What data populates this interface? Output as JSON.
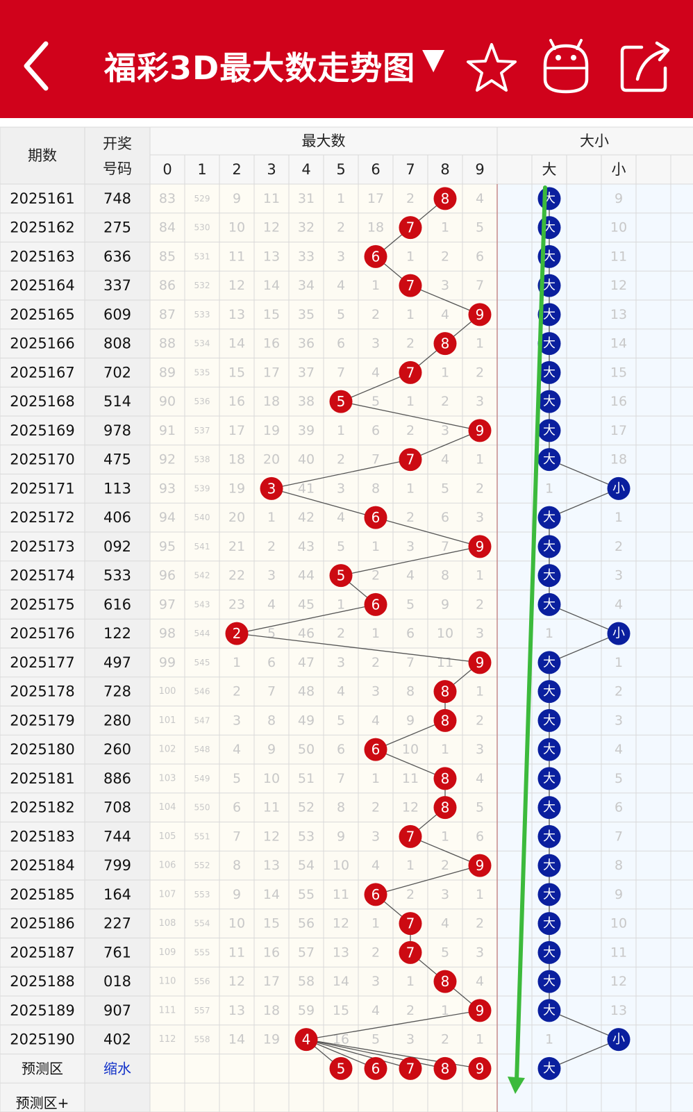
{
  "header": {
    "title": "福彩3D最大数走势图",
    "dropdown_glyph": "▼",
    "icons": [
      "back-arrow-icon",
      "star-icon",
      "robot-icon",
      "share-icon"
    ]
  },
  "table": {
    "col_period": "期数",
    "col_draw_line1": "开奖",
    "col_draw_line2": "号码",
    "group_max": "最大数",
    "group_size": "大小",
    "digits": [
      "0",
      "1",
      "2",
      "3",
      "4",
      "5",
      "6",
      "7",
      "8",
      "9"
    ],
    "size_labels": [
      "大",
      "小"
    ],
    "rows": [
      {
        "period": "2025161",
        "draw": "748",
        "max": 8,
        "size": "大",
        "cells": [
          "83",
          "529",
          "9",
          "11",
          "31",
          "1",
          "17",
          "2",
          "8",
          "4"
        ],
        "small_miss": "9"
      },
      {
        "period": "2025162",
        "draw": "275",
        "max": 7,
        "size": "大",
        "cells": [
          "84",
          "530",
          "10",
          "12",
          "32",
          "2",
          "18",
          "7",
          "1",
          "5"
        ],
        "small_miss": "10"
      },
      {
        "period": "2025163",
        "draw": "636",
        "max": 6,
        "size": "大",
        "cells": [
          "85",
          "531",
          "11",
          "13",
          "33",
          "3",
          "6",
          "1",
          "2",
          "6"
        ],
        "small_miss": "11"
      },
      {
        "period": "2025164",
        "draw": "337",
        "max": 7,
        "size": "大",
        "cells": [
          "86",
          "532",
          "12",
          "14",
          "34",
          "4",
          "1",
          "7",
          "3",
          "7"
        ],
        "small_miss": "12"
      },
      {
        "period": "2025165",
        "draw": "609",
        "max": 9,
        "size": "大",
        "cells": [
          "87",
          "533",
          "13",
          "15",
          "35",
          "5",
          "2",
          "1",
          "4",
          "9"
        ],
        "small_miss": "13"
      },
      {
        "period": "2025166",
        "draw": "808",
        "max": 8,
        "size": "大",
        "cells": [
          "88",
          "534",
          "14",
          "16",
          "36",
          "6",
          "3",
          "2",
          "8",
          "1"
        ],
        "small_miss": "14"
      },
      {
        "period": "2025167",
        "draw": "702",
        "max": 7,
        "size": "大",
        "cells": [
          "89",
          "535",
          "15",
          "17",
          "37",
          "7",
          "4",
          "7",
          "1",
          "2"
        ],
        "small_miss": "15"
      },
      {
        "period": "2025168",
        "draw": "514",
        "max": 5,
        "size": "大",
        "cells": [
          "90",
          "536",
          "16",
          "18",
          "38",
          "5",
          "5",
          "1",
          "2",
          "3"
        ],
        "small_miss": "16"
      },
      {
        "period": "2025169",
        "draw": "978",
        "max": 9,
        "size": "大",
        "cells": [
          "91",
          "537",
          "17",
          "19",
          "39",
          "1",
          "6",
          "2",
          "3",
          "9"
        ],
        "small_miss": "17"
      },
      {
        "period": "2025170",
        "draw": "475",
        "max": 7,
        "size": "大",
        "cells": [
          "92",
          "538",
          "18",
          "20",
          "40",
          "2",
          "7",
          "7",
          "4",
          "1"
        ],
        "small_miss": "18"
      },
      {
        "period": "2025171",
        "draw": "113",
        "max": 3,
        "size": "小",
        "cells": [
          "93",
          "539",
          "19",
          "3",
          "41",
          "3",
          "8",
          "1",
          "5",
          "2"
        ],
        "big_miss": "1"
      },
      {
        "period": "2025172",
        "draw": "406",
        "max": 6,
        "size": "大",
        "cells": [
          "94",
          "540",
          "20",
          "1",
          "42",
          "4",
          "6",
          "2",
          "6",
          "3"
        ],
        "small_miss": "1"
      },
      {
        "period": "2025173",
        "draw": "092",
        "max": 9,
        "size": "大",
        "cells": [
          "95",
          "541",
          "21",
          "2",
          "43",
          "5",
          "1",
          "3",
          "7",
          "9"
        ],
        "small_miss": "2"
      },
      {
        "period": "2025174",
        "draw": "533",
        "max": 5,
        "size": "大",
        "cells": [
          "96",
          "542",
          "22",
          "3",
          "44",
          "5",
          "2",
          "4",
          "8",
          "1"
        ],
        "small_miss": "3"
      },
      {
        "period": "2025175",
        "draw": "616",
        "max": 6,
        "size": "大",
        "cells": [
          "97",
          "543",
          "23",
          "4",
          "45",
          "1",
          "6",
          "5",
          "9",
          "2"
        ],
        "small_miss": "4"
      },
      {
        "period": "2025176",
        "draw": "122",
        "max": 2,
        "size": "小",
        "cells": [
          "98",
          "544",
          "2",
          "5",
          "46",
          "2",
          "1",
          "6",
          "10",
          "3"
        ],
        "big_miss": "1"
      },
      {
        "period": "2025177",
        "draw": "497",
        "max": 9,
        "size": "大",
        "cells": [
          "99",
          "545",
          "1",
          "6",
          "47",
          "3",
          "2",
          "7",
          "11",
          "9"
        ],
        "small_miss": "1"
      },
      {
        "period": "2025178",
        "draw": "728",
        "max": 8,
        "size": "大",
        "cells": [
          "100",
          "546",
          "2",
          "7",
          "48",
          "4",
          "3",
          "8",
          "8",
          "1"
        ],
        "small_miss": "2"
      },
      {
        "period": "2025179",
        "draw": "280",
        "max": 8,
        "size": "大",
        "cells": [
          "101",
          "547",
          "3",
          "8",
          "49",
          "5",
          "4",
          "9",
          "8",
          "2"
        ],
        "small_miss": "3"
      },
      {
        "period": "2025180",
        "draw": "260",
        "max": 6,
        "size": "大",
        "cells": [
          "102",
          "548",
          "4",
          "9",
          "50",
          "6",
          "6",
          "10",
          "1",
          "3"
        ],
        "small_miss": "4"
      },
      {
        "period": "2025181",
        "draw": "886",
        "max": 8,
        "size": "大",
        "cells": [
          "103",
          "549",
          "5",
          "10",
          "51",
          "7",
          "1",
          "11",
          "8",
          "4"
        ],
        "small_miss": "5"
      },
      {
        "period": "2025182",
        "draw": "708",
        "max": 8,
        "size": "大",
        "cells": [
          "104",
          "550",
          "6",
          "11",
          "52",
          "8",
          "2",
          "12",
          "8",
          "5"
        ],
        "small_miss": "6"
      },
      {
        "period": "2025183",
        "draw": "744",
        "max": 7,
        "size": "大",
        "cells": [
          "105",
          "551",
          "7",
          "12",
          "53",
          "9",
          "3",
          "7",
          "1",
          "6"
        ],
        "small_miss": "7"
      },
      {
        "period": "2025184",
        "draw": "799",
        "max": 9,
        "size": "大",
        "cells": [
          "106",
          "552",
          "8",
          "13",
          "54",
          "10",
          "4",
          "1",
          "2",
          "9"
        ],
        "small_miss": "8"
      },
      {
        "period": "2025185",
        "draw": "164",
        "max": 6,
        "size": "大",
        "cells": [
          "107",
          "553",
          "9",
          "14",
          "55",
          "11",
          "6",
          "2",
          "3",
          "1"
        ],
        "small_miss": "9"
      },
      {
        "period": "2025186",
        "draw": "227",
        "max": 7,
        "size": "大",
        "cells": [
          "108",
          "554",
          "10",
          "15",
          "56",
          "12",
          "1",
          "7",
          "4",
          "2"
        ],
        "small_miss": "10"
      },
      {
        "period": "2025187",
        "draw": "761",
        "max": 7,
        "size": "大",
        "cells": [
          "109",
          "555",
          "11",
          "16",
          "57",
          "13",
          "2",
          "7",
          "5",
          "3"
        ],
        "small_miss": "11"
      },
      {
        "period": "2025188",
        "draw": "018",
        "max": 8,
        "size": "大",
        "cells": [
          "110",
          "556",
          "12",
          "17",
          "58",
          "14",
          "3",
          "1",
          "8",
          "4"
        ],
        "small_miss": "12"
      },
      {
        "period": "2025189",
        "draw": "907",
        "max": 9,
        "size": "大",
        "cells": [
          "111",
          "557",
          "13",
          "18",
          "59",
          "15",
          "4",
          "2",
          "1",
          "9"
        ],
        "small_miss": "13"
      },
      {
        "period": "2025190",
        "draw": "402",
        "max": 4,
        "size": "小",
        "cells": [
          "112",
          "558",
          "14",
          "19",
          "4",
          "16",
          "5",
          "3",
          "2",
          "1"
        ],
        "big_miss": "1"
      }
    ],
    "predict_label": "预测区",
    "predict_link": "缩水",
    "predict_balls": [
      "5",
      "6",
      "7",
      "8",
      "9"
    ],
    "predict_size": "大",
    "predict_plus_label": "预测区+"
  },
  "colors": {
    "brand_red": "#d0021b",
    "ball_red": "#cc0a12",
    "ball_blue": "#0a1f9e",
    "annotation_green": "#3cba3c",
    "header_bg": "#f0f0f0",
    "miss_text": "#c8c8c8"
  }
}
